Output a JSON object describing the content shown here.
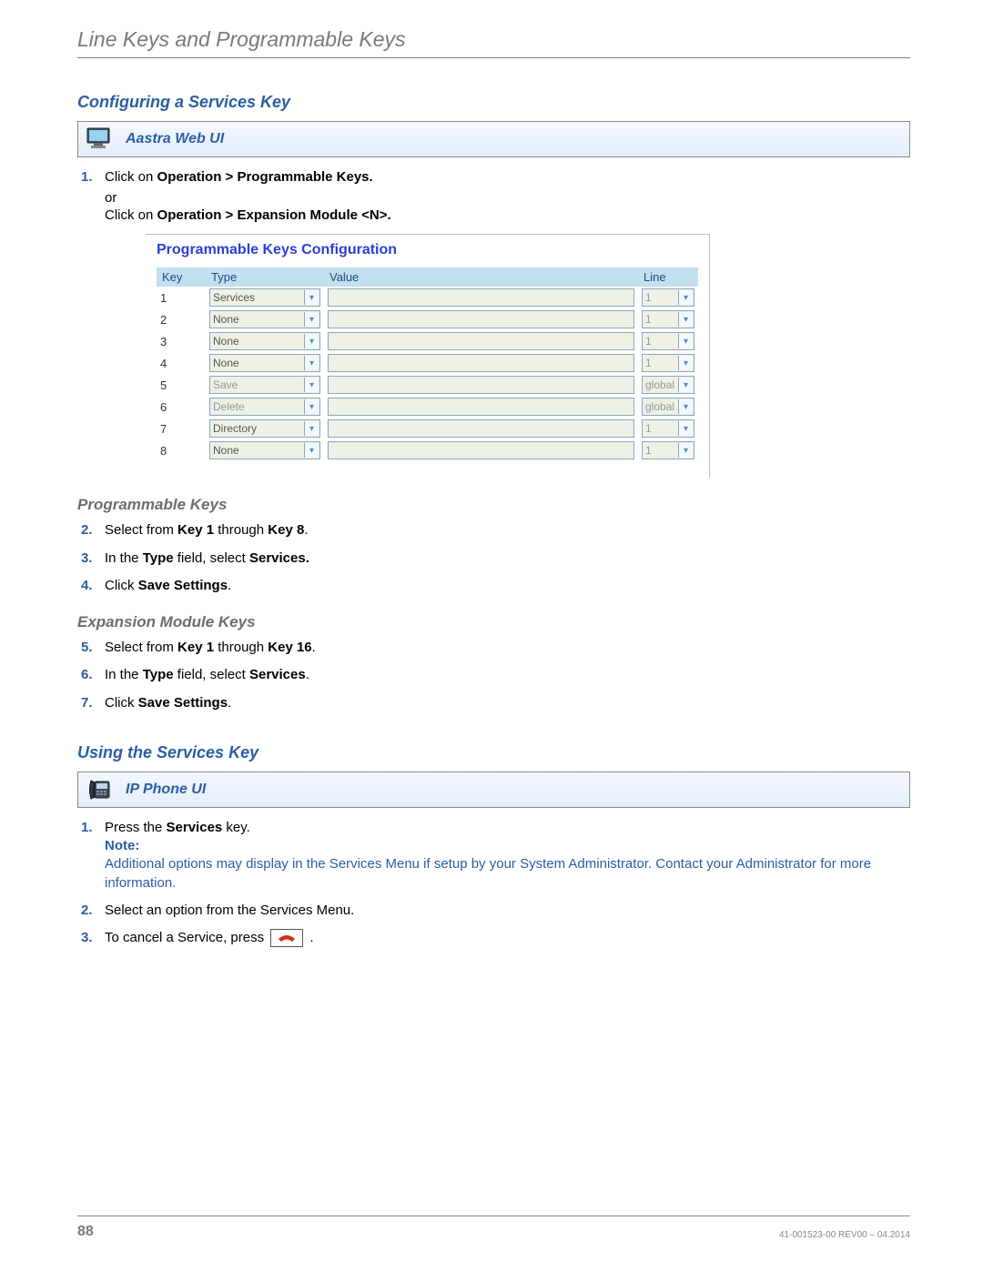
{
  "header": {
    "title": "Line Keys and Programmable Keys"
  },
  "section1": {
    "heading": "Configuring a Services Key",
    "bar_label": "Aastra Web UI"
  },
  "step1": {
    "num": "1.",
    "text_a": "Click on ",
    "bold_a": "Operation > Programmable Keys.",
    "or": "or",
    "text_b": "Click on ",
    "bold_b": "Operation > Expansion Module <N>."
  },
  "shot": {
    "title": "Programmable Keys Configuration",
    "cols": {
      "key": "Key",
      "type": "Type",
      "value": "Value",
      "line": "Line"
    },
    "rows": [
      {
        "key": "1",
        "type": "Services",
        "type_disabled": false,
        "line": "1",
        "line_disabled": true
      },
      {
        "key": "2",
        "type": "None",
        "type_disabled": false,
        "line": "1",
        "line_disabled": true
      },
      {
        "key": "3",
        "type": "None",
        "type_disabled": false,
        "line": "1",
        "line_disabled": true
      },
      {
        "key": "4",
        "type": "None",
        "type_disabled": false,
        "line": "1",
        "line_disabled": true
      },
      {
        "key": "5",
        "type": "Save",
        "type_disabled": true,
        "line": "global",
        "line_disabled": true
      },
      {
        "key": "6",
        "type": "Delete",
        "type_disabled": true,
        "line": "global",
        "line_disabled": true
      },
      {
        "key": "7",
        "type": "Directory",
        "type_disabled": false,
        "line": "1",
        "line_disabled": true
      },
      {
        "key": "8",
        "type": "None",
        "type_disabled": false,
        "line": "1",
        "line_disabled": true
      }
    ]
  },
  "progkeys": {
    "heading": "Programmable Keys",
    "s2": {
      "num": "2.",
      "a": "Select from ",
      "b1": "Key 1",
      "mid": " through ",
      "b2": "Key 8",
      "end": "."
    },
    "s3": {
      "num": "3.",
      "a": "In the ",
      "b1": "Type",
      "mid": " field, select ",
      "b2": "Services.",
      "end": ""
    },
    "s4": {
      "num": "4.",
      "a": "Click ",
      "b1": "Save Settings",
      "end": "."
    }
  },
  "expkeys": {
    "heading": "Expansion Module Keys",
    "s5": {
      "num": "5.",
      "a": "Select from ",
      "b1": "Key 1",
      "mid": " through ",
      "b2": "Key 16",
      "end": "."
    },
    "s6": {
      "num": "6.",
      "a": "In the ",
      "b1": "Type",
      "mid": " field, select ",
      "b2": "Services",
      "end": "."
    },
    "s7": {
      "num": "7.",
      "a": " Click ",
      "b1": "Save Settings",
      "end": "."
    }
  },
  "section2": {
    "heading": "Using the Services Key",
    "bar_label": "IP Phone UI"
  },
  "use": {
    "s1": {
      "num": "1.",
      "a": "Press the ",
      "b1": "Services",
      "end": " key."
    },
    "note_label": "Note:",
    "note_text": "Additional options may display in the Services Menu if setup by your System Administrator. Contact your Administrator for more information.",
    "s2": {
      "num": "2.",
      "text": "Select an option from the Services Menu."
    },
    "s3": {
      "num": "3.",
      "a": "To cancel a Service, press ",
      "end": " ."
    }
  },
  "footer": {
    "page": "88",
    "rev": "41-001523-00 REV00 – 04.2014"
  },
  "colors": {
    "heading_blue": "#2b5ea3",
    "gray_text": "#7a7a7a",
    "th_bg": "#c3e0ee",
    "input_bg": "#eef1e5",
    "hangup_red": "#d62b1f"
  }
}
